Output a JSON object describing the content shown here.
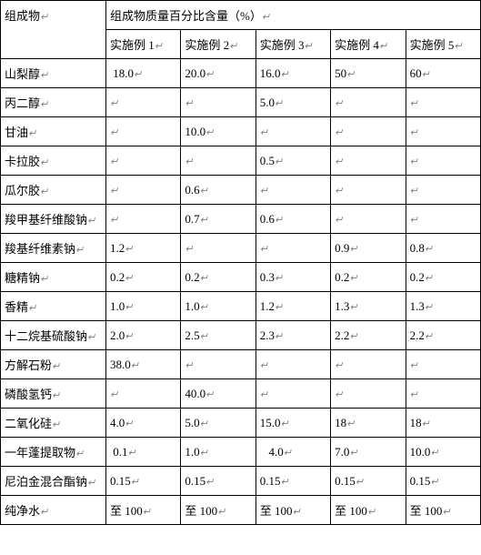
{
  "header": {
    "rowLabel": "组成物",
    "groupLabel": "组成物质量百分比含量（%）",
    "columns": [
      "实施例 1",
      "实施例 2",
      "实施例 3",
      "实施例 4",
      "实施例 5"
    ]
  },
  "marker": "↵",
  "rows": [
    {
      "label": "山梨醇",
      "cells": [
        " 18.0",
        "20.0",
        "16.0",
        "50",
        "60"
      ]
    },
    {
      "label": "丙二醇",
      "cells": [
        "",
        "",
        "5.0",
        "",
        ""
      ]
    },
    {
      "label": "甘油",
      "cells": [
        "",
        "10.0",
        "",
        "",
        ""
      ]
    },
    {
      "label": "卡拉胶",
      "cells": [
        "",
        "",
        "0.5",
        "",
        ""
      ]
    },
    {
      "label": "瓜尔胶",
      "cells": [
        "",
        "0.6",
        "",
        "",
        ""
      ]
    },
    {
      "label": "羧甲基纤维酸钠",
      "cells": [
        "",
        "0.7",
        "0.6",
        "",
        ""
      ]
    },
    {
      "label": "羧基纤维素钠",
      "cells": [
        "1.2",
        "",
        "",
        "0.9",
        "0.8"
      ]
    },
    {
      "label": "糖精钠",
      "cells": [
        "0.2",
        "0.2",
        "0.3",
        "0.2",
        "0.2"
      ]
    },
    {
      "label": "香精",
      "cells": [
        "1.0",
        "1.0",
        "1.2",
        "1.3",
        "1.3"
      ]
    },
    {
      "label": "十二烷基硫酸钠",
      "cells": [
        "2.0",
        "2.5",
        "2.3",
        "2.2",
        "2.2"
      ]
    },
    {
      "label": "方解石粉",
      "cells": [
        "38.0",
        "",
        "",
        "",
        ""
      ]
    },
    {
      "label": "磷酸氢钙",
      "cells": [
        "",
        "40.0",
        "",
        "",
        ""
      ]
    },
    {
      "label": "二氧化硅",
      "cells": [
        "4.0",
        "5.0",
        "15.0",
        "18",
        "18"
      ]
    },
    {
      "label": "一年蓬提取物",
      "cells": [
        " 0.1",
        "1.0",
        "   4.0",
        "7.0",
        "10.0"
      ]
    },
    {
      "label": "尼泊金混合酯钠",
      "cells": [
        "0.15",
        "0.15",
        "0.15",
        "0.15",
        "0.15"
      ]
    },
    {
      "label": "纯净水",
      "cells": [
        "至 100",
        "至 100",
        "至 100",
        "至 100",
        "至 100"
      ]
    }
  ],
  "style": {
    "fontSize": 13,
    "borderColor": "#000000",
    "background": "#ffffff",
    "markerColor": "#808080"
  }
}
